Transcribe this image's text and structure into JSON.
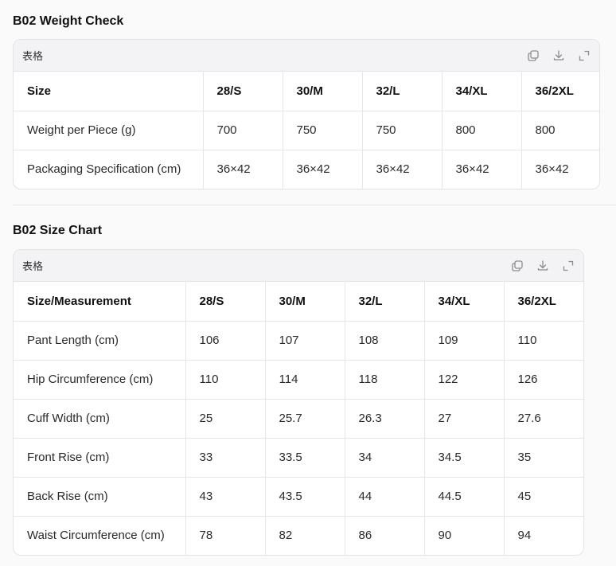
{
  "weight_check": {
    "title": "B02 Weight Check",
    "card_label": "表格",
    "headers": [
      "Size",
      "28/S",
      "30/M",
      "32/L",
      "34/XL",
      "36/2XL"
    ],
    "rows": [
      [
        "Weight per Piece (g)",
        "700",
        "750",
        "750",
        "800",
        "800"
      ],
      [
        "Packaging Specification (cm)",
        "36×42",
        "36×42",
        "36×42",
        "36×42",
        "36×42"
      ]
    ]
  },
  "size_chart": {
    "title": "B02 Size Chart",
    "card_label": "表格",
    "headers": [
      "Size/Measurement",
      "28/S",
      "30/M",
      "32/L",
      "34/XL",
      "36/2XL"
    ],
    "rows": [
      [
        "Pant Length (cm)",
        "106",
        "107",
        "108",
        "109",
        "110"
      ],
      [
        "Hip Circumference (cm)",
        "110",
        "114",
        "118",
        "122",
        "126"
      ],
      [
        "Cuff Width (cm)",
        "25",
        "25.7",
        "26.3",
        "27",
        "27.6"
      ],
      [
        "Front Rise (cm)",
        "33",
        "33.5",
        "34",
        "34.5",
        "35"
      ],
      [
        "Back Rise (cm)",
        "43",
        "43.5",
        "44",
        "44.5",
        "45"
      ],
      [
        "Waist Circumference (cm)",
        "78",
        "82",
        "86",
        "90",
        "94"
      ]
    ]
  },
  "icons": [
    "copy-icon",
    "download-icon",
    "expand-icon"
  ]
}
